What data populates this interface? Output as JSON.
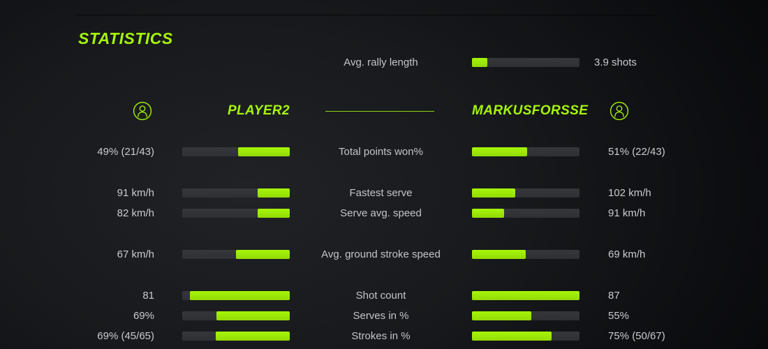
{
  "colors": {
    "accent": "#a6f50a",
    "track": "#35373a",
    "text": "#c9ccce",
    "label": "#c2c6c9"
  },
  "title": "STATISTICS",
  "rally": {
    "label": "Avg. rally length",
    "value": "3.9 shots",
    "fill": 14
  },
  "players": {
    "left": {
      "name": "PLAYER2"
    },
    "right": {
      "name": "MARKUSFORSSE"
    }
  },
  "rows": [
    {
      "label": "Total points won%",
      "left": {
        "value": "49% (21/43)",
        "fill": 48
      },
      "right": {
        "value": "51% (22/43)",
        "fill": 51
      }
    },
    {
      "label": "Fastest serve",
      "left": {
        "value": "91 km/h",
        "fill": 30
      },
      "right": {
        "value": "102 km/h",
        "fill": 40
      }
    },
    {
      "label": "Serve avg. speed",
      "left": {
        "value": "82 km/h",
        "fill": 30
      },
      "right": {
        "value": "91 km/h",
        "fill": 30
      }
    },
    {
      "label": "Avg. ground stroke speed",
      "left": {
        "value": "67 km/h",
        "fill": 50
      },
      "right": {
        "value": "69 km/h",
        "fill": 50
      }
    },
    {
      "label": "Shot count",
      "left": {
        "value": "81",
        "fill": 93
      },
      "right": {
        "value": "87",
        "fill": 100
      }
    },
    {
      "label": "Serves in %",
      "left": {
        "value": "69%",
        "fill": 68
      },
      "right": {
        "value": "55%",
        "fill": 55
      }
    },
    {
      "label": "Strokes in %",
      "left": {
        "value": "69% (45/65)",
        "fill": 69
      },
      "right": {
        "value": "75% (50/67)",
        "fill": 74
      }
    }
  ]
}
